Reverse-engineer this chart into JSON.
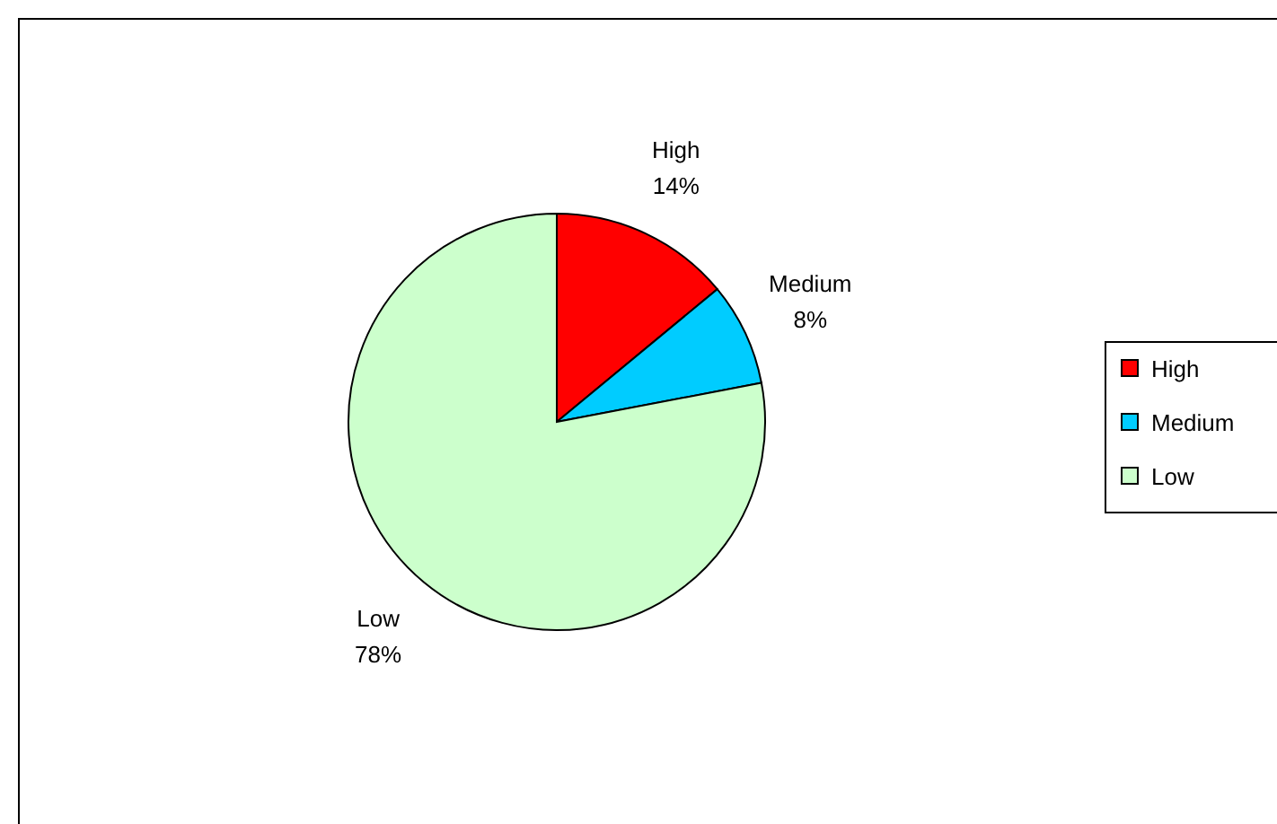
{
  "chart_data": {
    "type": "pie",
    "categories": [
      "High",
      "Medium",
      "Low"
    ],
    "values": [
      14,
      8,
      78
    ],
    "colors": [
      "#ff0000",
      "#00ccff",
      "#ccffcc"
    ],
    "value_labels": [
      "14%",
      "8%",
      "78%"
    ],
    "legend": "right"
  }
}
